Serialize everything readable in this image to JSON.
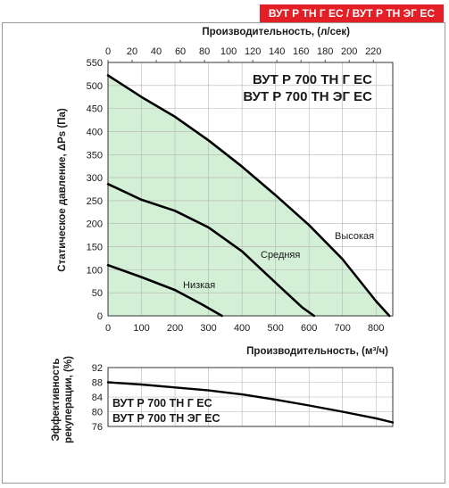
{
  "header": {
    "badge": "ВУТ Р ТН Г ЕС / ВУТ Р ТН ЭГ ЕС"
  },
  "colors": {
    "badge": "#e41e25",
    "fill": "#d3efd6",
    "curve": "#000000",
    "grid": "#b5b5b5"
  },
  "chart_data": [
    {
      "type": "line",
      "title_lines": [
        "ВУТ Р 700 ТН Г ЕС",
        "ВУТ Р 700 ТН ЭГ ЕС"
      ],
      "xlabel": "Производительность, (м³/ч)",
      "x2label": "Производительность, (л/сек)",
      "ylabel": "Статическое давление, ΔPs (Па)",
      "xlim": [
        0,
        850
      ],
      "ylim": [
        0,
        550
      ],
      "x2lim": [
        0,
        236.1
      ],
      "x_ticks": [
        "0",
        "100",
        "200",
        "300",
        "400",
        "500",
        "600",
        "700",
        "800"
      ],
      "x2_ticks": [
        "0",
        "20",
        "40",
        "60",
        "80",
        "100",
        "120",
        "140",
        "160",
        "180",
        "200",
        "220"
      ],
      "y_ticks": [
        "0",
        "50",
        "100",
        "150",
        "200",
        "250",
        "300",
        "350",
        "400",
        "450",
        "500",
        "550"
      ],
      "grid": true,
      "series": [
        {
          "name": "Высокая",
          "x": [
            0,
            100,
            200,
            300,
            400,
            500,
            600,
            700,
            800,
            840
          ],
          "y": [
            522,
            475,
            432,
            381,
            324,
            262,
            197,
            123,
            32,
            0
          ]
        },
        {
          "name": "Средняя",
          "x": [
            0,
            100,
            200,
            300,
            400,
            500,
            580,
            615
          ],
          "y": [
            286,
            252,
            228,
            192,
            140,
            72,
            18,
            0
          ]
        },
        {
          "name": "Низкая",
          "x": [
            0,
            100,
            200,
            280,
            340
          ],
          "y": [
            110,
            84,
            56,
            25,
            0
          ]
        }
      ]
    },
    {
      "type": "line",
      "title_lines": [
        "ВУТ Р 700 ТН Г ЕС",
        "ВУТ Р 700 ТН ЭГ ЕС"
      ],
      "ylabel": "Эффективность рекуперации, (%)",
      "xlim": [
        0,
        850
      ],
      "ylim": [
        76,
        92
      ],
      "y_ticks": [
        "76",
        "80",
        "84",
        "88",
        "92"
      ],
      "grid": true,
      "series": [
        {
          "x": [
            0,
            100,
            200,
            300,
            400,
            500,
            600,
            700,
            800,
            850
          ],
          "y": [
            88.0,
            87.4,
            86.6,
            85.8,
            84.7,
            83.3,
            81.7,
            80.0,
            78.2,
            77.1
          ]
        }
      ]
    }
  ]
}
